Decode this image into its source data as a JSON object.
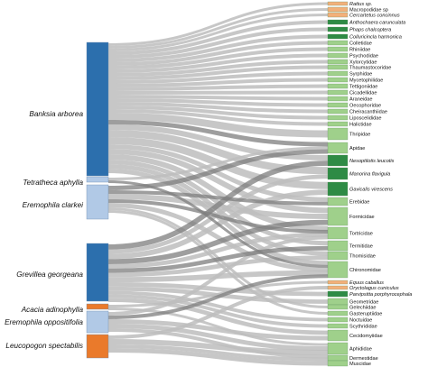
{
  "colors": {
    "plant_dark": "#2c6fad",
    "plant_light": "#b1c9e6",
    "plant_orange": "#ea7a2b",
    "mammal": "#f2b07a",
    "bird": "#2e8b45",
    "insect": "#9fd08b",
    "flow": "#bdbdbd",
    "flow_dark": "#7e7e7e"
  },
  "plants": [
    {
      "name": "Banksia arborea",
      "color": "plant_dark"
    },
    {
      "name": "Tetratheca aphylla",
      "color": "plant_light"
    },
    {
      "name": "Eremophila clarkei",
      "color": "plant_light"
    },
    {
      "name": "Grevillea georgeana",
      "color": "plant_dark"
    },
    {
      "name": "Acacia adinophylla",
      "color": "plant_orange"
    },
    {
      "name": "Eremophila oppositifolia",
      "color": "plant_light"
    },
    {
      "name": "Leucopogon spectabilis",
      "color": "plant_orange"
    }
  ],
  "visitors": [
    {
      "name": "Rattus sp.",
      "color": "mammal",
      "italic": true
    },
    {
      "name": "Macropodidae sp",
      "color": "mammal",
      "italic": false
    },
    {
      "name": "Cercartetus concinnus",
      "color": "mammal",
      "italic": true
    },
    {
      "name": "Anthochaera carunculata",
      "color": "bird",
      "italic": true
    },
    {
      "name": "Phaps chalcoptera",
      "color": "bird",
      "italic": true
    },
    {
      "name": "Colluricincla harmonica",
      "color": "bird",
      "italic": true
    },
    {
      "name": "Colletidae",
      "color": "insect",
      "italic": false
    },
    {
      "name": "Rhiniidae",
      "color": "insect",
      "italic": false
    },
    {
      "name": "Psychodidae",
      "color": "insect",
      "italic": false
    },
    {
      "name": "Xylorcytidae",
      "color": "insect",
      "italic": false
    },
    {
      "name": "Thaumastocoridae",
      "color": "insect",
      "italic": false
    },
    {
      "name": "Syrphidae",
      "color": "insect",
      "italic": false
    },
    {
      "name": "Mycetophilidae",
      "color": "insect",
      "italic": false
    },
    {
      "name": "Tettigoniidae",
      "color": "insect",
      "italic": false
    },
    {
      "name": "Cicadellidae",
      "color": "insect",
      "italic": false
    },
    {
      "name": "Araneidae",
      "color": "insect",
      "italic": false
    },
    {
      "name": "Oecophoridae",
      "color": "insect",
      "italic": false
    },
    {
      "name": "Cheiracanthiidae",
      "color": "insect",
      "italic": false
    },
    {
      "name": "Liposcelididae",
      "color": "insect",
      "italic": false
    },
    {
      "name": "Halictidae",
      "color": "insect",
      "italic": false
    },
    {
      "name": "Thripidae",
      "color": "insect",
      "italic": false
    },
    {
      "name": "Apidae",
      "color": "insect",
      "italic": false
    },
    {
      "name": "Nesoptilotis leucotis",
      "color": "bird",
      "italic": true
    },
    {
      "name": "Manorina flavigula",
      "color": "bird",
      "italic": true
    },
    {
      "name": "Gavicalis virescens",
      "color": "bird",
      "italic": true
    },
    {
      "name": "Erebidae",
      "color": "insect",
      "italic": false
    },
    {
      "name": "Formicidae",
      "color": "insect",
      "italic": false
    },
    {
      "name": "Tortricidae",
      "color": "insect",
      "italic": false
    },
    {
      "name": "Termitidae",
      "color": "insect",
      "italic": false
    },
    {
      "name": "Thomisidae",
      "color": "insect",
      "italic": false
    },
    {
      "name": "Chironomidae",
      "color": "insect",
      "italic": false
    },
    {
      "name": "Equus caballus",
      "color": "mammal",
      "italic": true
    },
    {
      "name": "Oryctolagus cuniculus",
      "color": "mammal",
      "italic": true
    },
    {
      "name": "Parvipsitta porphyrocephala",
      "color": "bird",
      "italic": true
    },
    {
      "name": "Geometridae",
      "color": "insect",
      "italic": false
    },
    {
      "name": "Gelechiidae",
      "color": "insect",
      "italic": false
    },
    {
      "name": "Gasteruptiidae",
      "color": "insect",
      "italic": false
    },
    {
      "name": "Noctuidae",
      "color": "insect",
      "italic": false
    },
    {
      "name": "Scythrididae",
      "color": "insect",
      "italic": false
    },
    {
      "name": "Cecidomyiidae",
      "color": "insect",
      "italic": false
    },
    {
      "name": "Aphididae",
      "color": "insect",
      "italic": false
    },
    {
      "name": "Dermestidae",
      "color": "insect",
      "italic": false
    },
    {
      "name": "Muscidae",
      "color": "insect",
      "italic": false
    }
  ]
}
